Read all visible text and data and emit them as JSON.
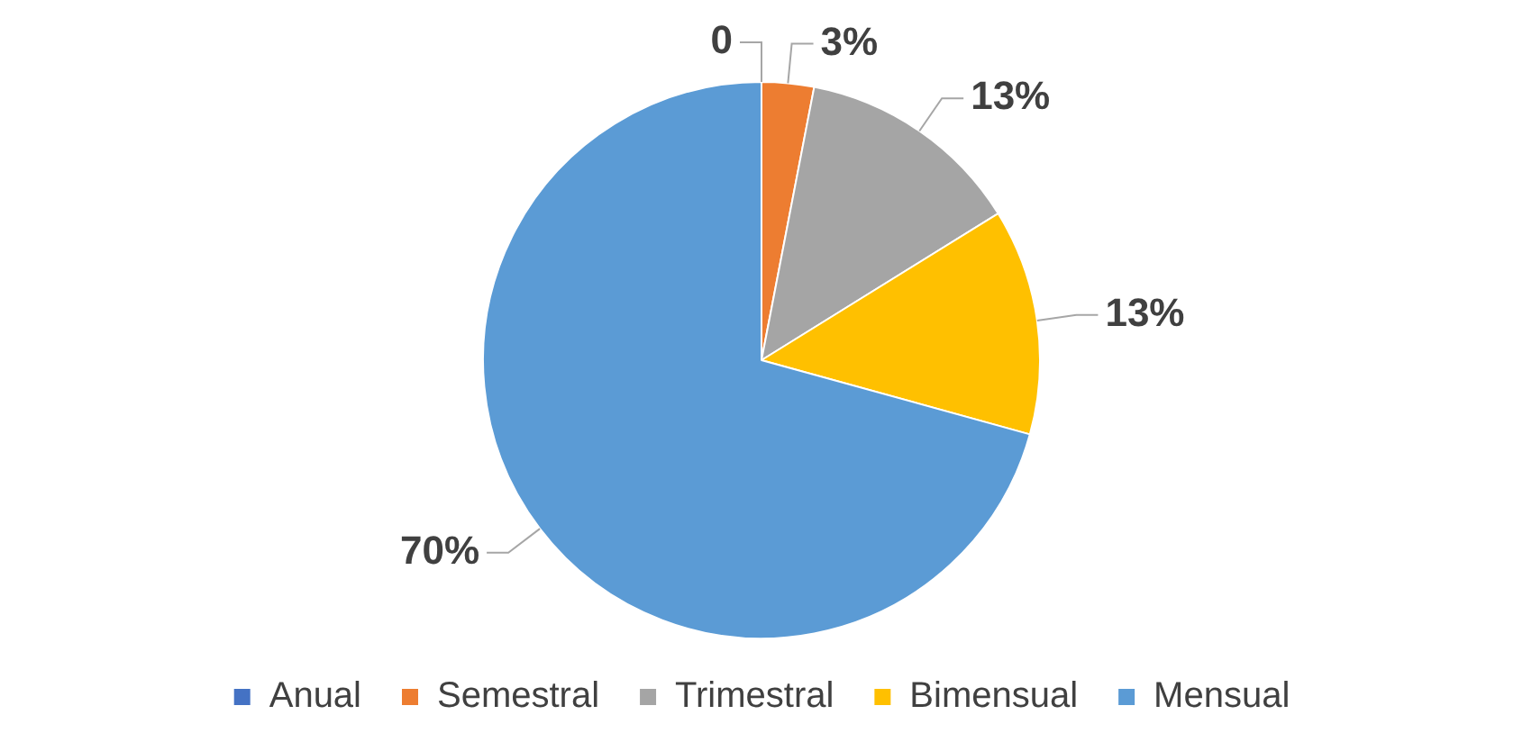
{
  "chart_data": {
    "type": "pie",
    "categories": [
      "Anual",
      "Semestral",
      "Trimestral",
      "Bimensual",
      "Mensual"
    ],
    "values": [
      0,
      3,
      13,
      13,
      70
    ],
    "value_labels": [
      "0",
      "3%",
      "13%",
      "13%",
      "70%"
    ],
    "colors": [
      "#4472c4",
      "#ed7d31",
      "#a5a5a5",
      "#ffc000",
      "#5b9bd5"
    ],
    "legend": "bottom"
  }
}
